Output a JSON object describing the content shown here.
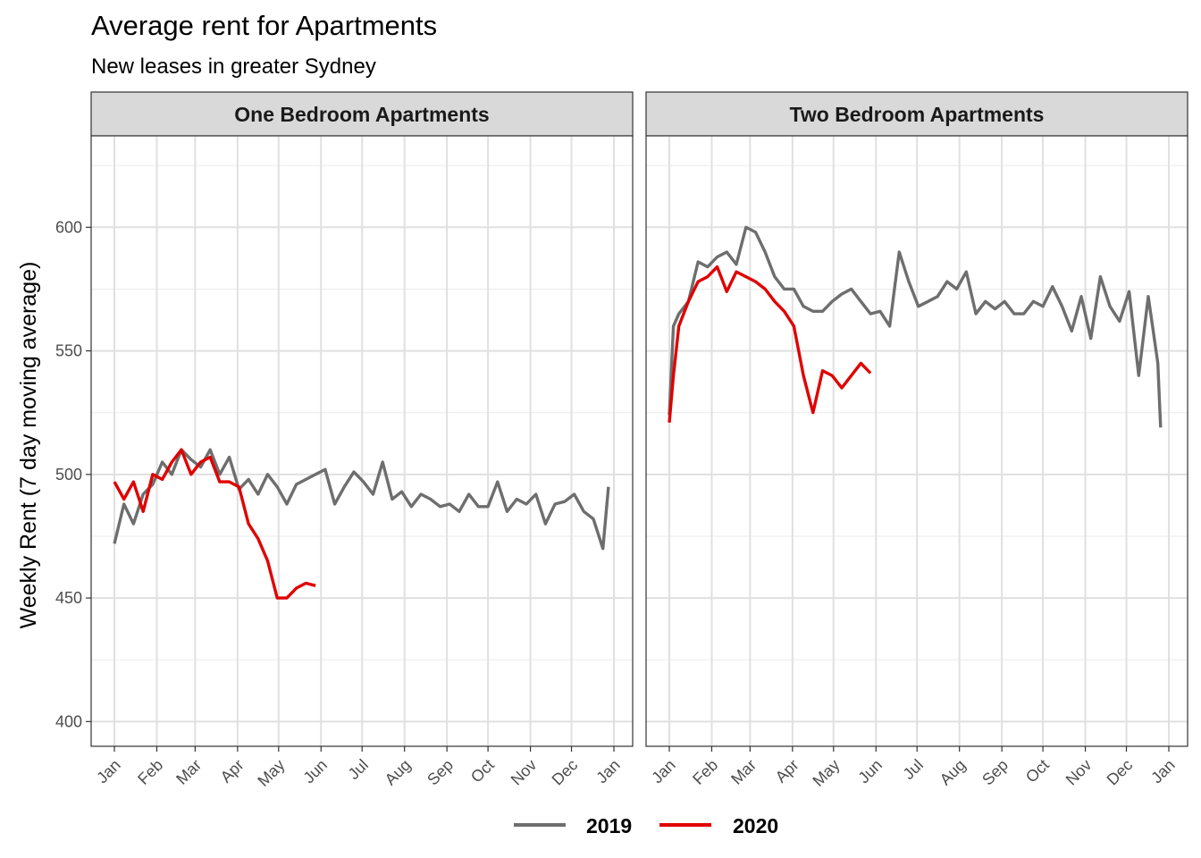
{
  "chart_data": {
    "type": "line",
    "title": "Average rent for Apartments",
    "subtitle": "New leases in greater Sydney",
    "ylabel": "Weekly Rent (7 day moving average)",
    "xlabel": "",
    "ylim": [
      390,
      637
    ],
    "yticks": [
      400,
      450,
      500,
      550,
      600
    ],
    "x_tick_labels": [
      "Jan",
      "Feb",
      "Mar",
      "Apr",
      "May",
      "Jun",
      "Jul",
      "Aug",
      "Sep",
      "Oct",
      "Nov",
      "Dec",
      "Jan"
    ],
    "grid": true,
    "legend_placement": "bottom",
    "series_colors": {
      "2019": "#6e6e6e",
      "2020": "#e00000"
    },
    "panels": [
      {
        "name": "One Bedroom Apartments",
        "series": [
          {
            "name": "2019",
            "x": [
              "01-01",
              "01-08",
              "01-15",
              "01-22",
              "01-29",
              "02-05",
              "02-12",
              "02-19",
              "02-26",
              "03-05",
              "03-12",
              "03-19",
              "03-26",
              "04-02",
              "04-09",
              "04-16",
              "04-23",
              "04-30",
              "05-07",
              "05-14",
              "05-21",
              "05-28",
              "06-04",
              "06-11",
              "06-18",
              "06-25",
              "07-02",
              "07-09",
              "07-16",
              "07-23",
              "07-30",
              "08-06",
              "08-13",
              "08-20",
              "08-27",
              "09-03",
              "09-10",
              "09-17",
              "09-24",
              "10-01",
              "10-08",
              "10-15",
              "10-22",
              "10-29",
              "11-05",
              "11-12",
              "11-19",
              "11-26",
              "12-03",
              "12-10",
              "12-17",
              "12-24",
              "12-28"
            ],
            "values": [
              472,
              488,
              480,
              492,
              496,
              505,
              500,
              510,
              506,
              503,
              510,
              500,
              507,
              494,
              498,
              492,
              500,
              495,
              488,
              496,
              498,
              500,
              502,
              488,
              495,
              501,
              497,
              492,
              505,
              490,
              493,
              487,
              492,
              490,
              487,
              488,
              485,
              492,
              487,
              487,
              497,
              485,
              490,
              488,
              492,
              480,
              488,
              489,
              492,
              485,
              482,
              470,
              495
            ]
          },
          {
            "name": "2020",
            "x": [
              "01-01",
              "01-08",
              "01-15",
              "01-22",
              "01-29",
              "02-05",
              "02-12",
              "02-19",
              "02-26",
              "03-05",
              "03-12",
              "03-19",
              "03-26",
              "04-02",
              "04-09",
              "04-16",
              "04-23",
              "04-30",
              "05-07",
              "05-14",
              "05-21",
              "05-28"
            ],
            "values": [
              497,
              490,
              497,
              485,
              500,
              498,
              505,
              510,
              500,
              505,
              507,
              497,
              497,
              495,
              480,
              474,
              465,
              450,
              450,
              454,
              456,
              455
            ]
          }
        ]
      },
      {
        "name": "Two Bedroom Apartments",
        "series": [
          {
            "name": "2019",
            "x": [
              "01-01",
              "01-04",
              "01-08",
              "01-15",
              "01-22",
              "01-29",
              "02-05",
              "02-12",
              "02-19",
              "02-26",
              "03-05",
              "03-12",
              "03-19",
              "03-26",
              "04-02",
              "04-09",
              "04-16",
              "04-23",
              "04-30",
              "05-07",
              "05-14",
              "05-21",
              "05-28",
              "06-04",
              "06-11",
              "06-18",
              "06-25",
              "07-02",
              "07-09",
              "07-16",
              "07-23",
              "07-30",
              "08-06",
              "08-13",
              "08-20",
              "08-27",
              "09-03",
              "09-10",
              "09-17",
              "09-24",
              "10-01",
              "10-08",
              "10-15",
              "10-22",
              "10-29",
              "11-05",
              "11-12",
              "11-19",
              "11-26",
              "12-03",
              "12-10",
              "12-17",
              "12-24",
              "12-26"
            ],
            "values": [
              524,
              560,
              565,
              570,
              586,
              584,
              588,
              590,
              585,
              600,
              598,
              590,
              580,
              575,
              575,
              568,
              566,
              566,
              570,
              573,
              575,
              570,
              565,
              566,
              560,
              590,
              578,
              568,
              570,
              572,
              578,
              575,
              582,
              565,
              570,
              567,
              570,
              565,
              565,
              570,
              568,
              576,
              568,
              558,
              572,
              555,
              580,
              568,
              562,
              574,
              540,
              572,
              545,
              519
            ]
          },
          {
            "name": "2020",
            "x": [
              "01-01",
              "01-04",
              "01-08",
              "01-15",
              "01-22",
              "01-29",
              "02-05",
              "02-12",
              "02-19",
              "02-26",
              "03-05",
              "03-12",
              "03-19",
              "03-26",
              "04-02",
              "04-09",
              "04-16",
              "04-23",
              "04-30",
              "05-07",
              "05-14",
              "05-21",
              "05-28"
            ],
            "values": [
              521,
              540,
              560,
              570,
              578,
              580,
              584,
              574,
              582,
              580,
              578,
              575,
              570,
              566,
              560,
              540,
              525,
              542,
              540,
              535,
              540,
              545,
              541
            ]
          }
        ]
      }
    ]
  }
}
